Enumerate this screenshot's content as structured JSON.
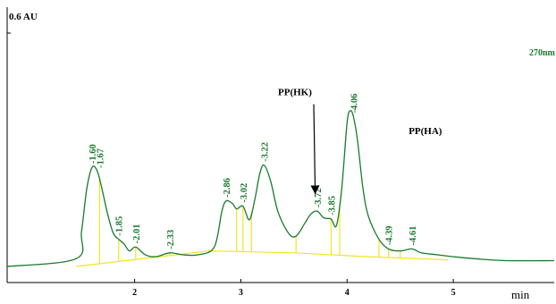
{
  "chart_data": {
    "type": "line",
    "xlabel": "min",
    "ylabel": "",
    "y_scale_label": "0.6 AU",
    "wavelength_label": "270nm",
    "xlim": [
      0.8,
      5.95
    ],
    "ylim": [
      0,
      0.6
    ],
    "x_ticks": [
      {
        "value": 2,
        "label": "2"
      },
      {
        "value": 3,
        "label": "3"
      },
      {
        "value": 4,
        "label": "4"
      },
      {
        "value": 5,
        "label": "5"
      }
    ],
    "series": [
      {
        "color": "#1a7a2e",
        "x": [
          0.8,
          1.45,
          1.5,
          1.55,
          1.6,
          1.65,
          1.7,
          1.75,
          1.8,
          1.85,
          1.9,
          1.95,
          2.01,
          2.1,
          2.2,
          2.33,
          2.45,
          2.6,
          2.75,
          2.82,
          2.86,
          2.92,
          2.96,
          3.02,
          3.08,
          3.13,
          3.18,
          3.22,
          3.28,
          3.35,
          3.45,
          3.52,
          3.6,
          3.66,
          3.72,
          3.78,
          3.85,
          3.9,
          3.95,
          4.0,
          4.03,
          4.06,
          4.1,
          4.15,
          4.2,
          4.3,
          4.39,
          4.5,
          4.61,
          4.7,
          4.85,
          5.0,
          5.2,
          5.5,
          5.95
        ],
        "y": [
          0.0,
          0.02,
          0.09,
          0.2,
          0.255,
          0.244,
          0.19,
          0.13,
          0.085,
          0.07,
          0.058,
          0.04,
          0.05,
          0.03,
          0.025,
          0.035,
          0.03,
          0.03,
          0.05,
          0.14,
          0.168,
          0.162,
          0.148,
          0.155,
          0.12,
          0.17,
          0.24,
          0.26,
          0.22,
          0.14,
          0.085,
          0.078,
          0.11,
          0.135,
          0.142,
          0.125,
          0.122,
          0.105,
          0.2,
          0.37,
          0.4,
          0.385,
          0.32,
          0.2,
          0.13,
          0.07,
          0.045,
          0.04,
          0.045,
          0.035,
          0.03,
          0.025,
          0.02,
          0.015,
          0.015
        ]
      }
    ],
    "baseline": {
      "color": "#f2e61e",
      "x": [
        1.45,
        2.7,
        3.5,
        4.2,
        4.95
      ],
      "y": [
        0.0,
        0.04,
        0.035,
        0.025,
        0.017
      ]
    },
    "peaks": [
      {
        "label": "1.60",
        "x": 1.6,
        "y": 0.255,
        "has_drop": false
      },
      {
        "label": "1.67",
        "x": 1.67,
        "y": 0.244,
        "has_drop": true
      },
      {
        "label": "1.85",
        "x": 1.85,
        "y": 0.07,
        "has_drop": true
      },
      {
        "label": "2.01",
        "x": 2.01,
        "y": 0.05,
        "has_drop": true
      },
      {
        "label": "2.33",
        "x": 2.33,
        "y": 0.035,
        "has_drop": true
      },
      {
        "label": "2.86",
        "x": 2.86,
        "y": 0.168,
        "has_drop": false
      },
      {
        "label": "3.02",
        "x": 3.02,
        "y": 0.155,
        "has_drop": true
      },
      {
        "label": "3.22",
        "x": 3.22,
        "y": 0.26,
        "has_drop": false
      },
      {
        "label": "3.72",
        "x": 3.72,
        "y": 0.142,
        "has_drop": false
      },
      {
        "label": "3.85",
        "x": 3.85,
        "y": 0.122,
        "has_drop": true
      },
      {
        "label": "4.06",
        "x": 4.06,
        "y": 0.385,
        "has_drop": false
      },
      {
        "label": "4.39",
        "x": 4.39,
        "y": 0.045,
        "has_drop": true
      },
      {
        "label": "4.61",
        "x": 4.61,
        "y": 0.045,
        "has_drop": false
      }
    ],
    "extra_drops": [
      2.7,
      2.96,
      3.1,
      3.52,
      3.93,
      4.3,
      4.5
    ],
    "annotations": [
      {
        "text": "PP(HK)",
        "x": 3.35,
        "y": 0.44,
        "arrow_to": [
          3.7,
          0.19
        ]
      },
      {
        "text": "PP(HA)",
        "x": 4.58,
        "y": 0.34
      }
    ]
  }
}
